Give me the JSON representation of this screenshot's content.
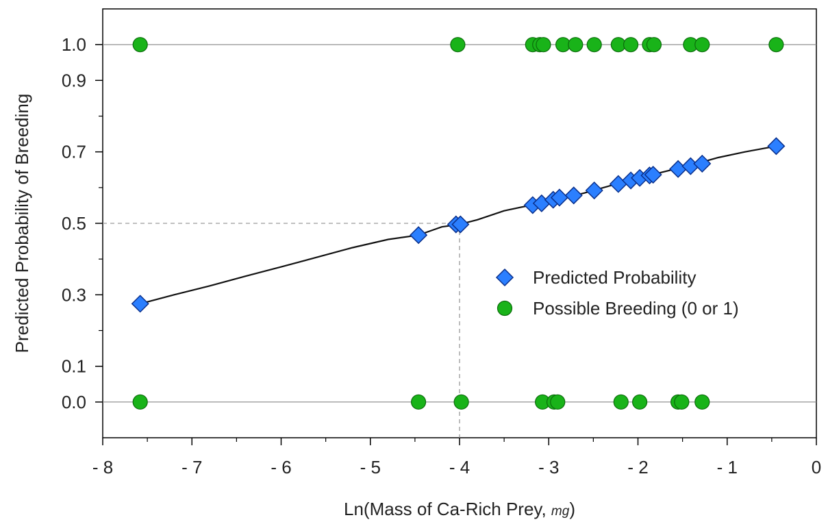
{
  "chart_data": {
    "type": "scatter",
    "title": "",
    "xlabel_main": "Ln(Mass of Ca-Rich Prey, ",
    "xlabel_unit": "mg",
    "xlabel_close": ")",
    "ylabel": "Predicted Probability of Breeding",
    "xlim": [
      -8,
      0
    ],
    "ylim": [
      -0.1,
      1.1
    ],
    "x_ticks": [
      {
        "value": -8,
        "label": "- 8"
      },
      {
        "value": -7,
        "label": "- 7"
      },
      {
        "value": -6,
        "label": "- 6"
      },
      {
        "value": -5,
        "label": "- 5"
      },
      {
        "value": -4,
        "label": "- 4"
      },
      {
        "value": -3,
        "label": "- 3"
      },
      {
        "value": -2,
        "label": "- 2"
      },
      {
        "value": -1,
        "label": "- 1"
      },
      {
        "value": 0,
        "label": "0"
      }
    ],
    "x_minor_ticks": [
      -7.5,
      -6.5,
      -5.5,
      -4.5,
      -3.5,
      -2.5,
      -1.5,
      -0.5
    ],
    "y_ticks": [
      {
        "value": 0.0,
        "label": "0.0"
      },
      {
        "value": 0.1,
        "label": "0.1"
      },
      {
        "value": 0.3,
        "label": "0.3"
      },
      {
        "value": 0.5,
        "label": "0.5"
      },
      {
        "value": 0.7,
        "label": "0.7"
      },
      {
        "value": 0.9,
        "label": "0.9"
      },
      {
        "value": 1.0,
        "label": "1.0"
      }
    ],
    "y_minor_ticks": [
      0.2,
      0.4,
      0.6,
      0.8
    ],
    "reference_lines_y": [
      0.0,
      1.0
    ],
    "threshold": {
      "x": -4.0,
      "y": 0.5
    },
    "legend_position": "right-center",
    "series": [
      {
        "name": "Predicted Probability",
        "marker": "diamond",
        "color": "#2b7fff",
        "edge": "#0a2f8a",
        "x": [
          -7.58,
          -4.46,
          -4.04,
          -3.99,
          -3.18,
          -3.08,
          -2.95,
          -2.88,
          -2.72,
          -2.49,
          -2.22,
          -2.08,
          -1.98,
          -1.87,
          -1.83,
          -1.55,
          -1.41,
          -1.28,
          -0.45
        ],
        "y": [
          0.275,
          0.467,
          0.497,
          0.497,
          0.551,
          0.556,
          0.566,
          0.572,
          0.578,
          0.592,
          0.61,
          0.62,
          0.627,
          0.634,
          0.636,
          0.652,
          0.66,
          0.667,
          0.716
        ]
      },
      {
        "name": "Possible Breeding (0 or 1)",
        "marker": "circle",
        "color": "#19b319",
        "edge": "#0b6b0b",
        "x": [
          -7.58,
          -4.02,
          -3.18,
          -3.1,
          -3.06,
          -2.84,
          -2.7,
          -2.49,
          -2.22,
          -2.08,
          -1.87,
          -1.82,
          -1.41,
          -1.28,
          -0.45,
          -7.58,
          -4.46,
          -3.98,
          -3.07,
          -2.94,
          -2.9,
          -2.19,
          -1.98,
          -1.55,
          -1.51,
          -1.28
        ],
        "y": [
          1,
          1,
          1,
          1,
          1,
          1,
          1,
          1,
          1,
          1,
          1,
          1,
          1,
          1,
          1,
          0,
          0,
          0,
          0,
          0,
          0,
          0,
          0,
          0,
          0,
          0
        ]
      }
    ],
    "curve": {
      "x": [
        -7.58,
        -7.2,
        -6.8,
        -6.4,
        -6.0,
        -5.6,
        -5.2,
        -4.8,
        -4.46,
        -4.2,
        -4.0,
        -3.8,
        -3.5,
        -3.2,
        -2.9,
        -2.6,
        -2.3,
        -2.0,
        -1.7,
        -1.4,
        -1.1,
        -0.8,
        -0.45
      ],
      "y": [
        0.275,
        0.3,
        0.325,
        0.352,
        0.378,
        0.405,
        0.432,
        0.455,
        0.467,
        0.49,
        0.497,
        0.51,
        0.535,
        0.551,
        0.566,
        0.585,
        0.606,
        0.626,
        0.645,
        0.663,
        0.684,
        0.7,
        0.716
      ]
    }
  }
}
